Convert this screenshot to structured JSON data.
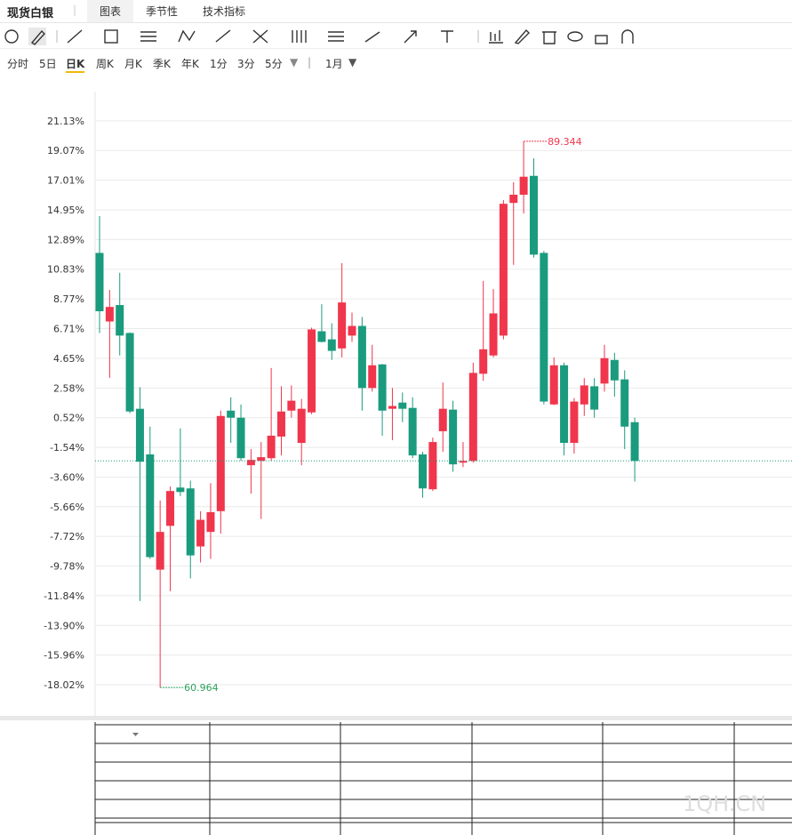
{
  "header": {
    "title": "现货白银",
    "tabs": [
      "图表",
      "季节性",
      "技术指标"
    ]
  },
  "periods": [
    "分时",
    "5日",
    "日K",
    "周K",
    "月K",
    "季K",
    "年K",
    "1分",
    "3分",
    "5分",
    "1月"
  ],
  "watermark": "1QH.CN",
  "chart_data": {
    "type": "candlestick",
    "up_color": "#f0364c",
    "down_color": "#1a9b7e",
    "ylim": [
      -20.18,
      23.16
    ],
    "yticks": [
      {
        "value": 21.13,
        "label": "21.13%"
      },
      {
        "value": 19.07,
        "label": "19.07%"
      },
      {
        "value": 17.01,
        "label": "17.01%"
      },
      {
        "value": 14.95,
        "label": "14.95%"
      },
      {
        "value": 12.89,
        "label": "12.89%"
      },
      {
        "value": 10.83,
        "label": "10.83%"
      },
      {
        "value": 8.77,
        "label": "8.77%"
      },
      {
        "value": 6.71,
        "label": "6.71%"
      },
      {
        "value": 4.65,
        "label": "4.65%"
      },
      {
        "value": 2.58,
        "label": "2.58%"
      },
      {
        "value": 0.52,
        "label": "0.52%"
      },
      {
        "value": -1.54,
        "label": "-1.54%"
      },
      {
        "value": -3.6,
        "label": "-3.60%"
      },
      {
        "value": -5.66,
        "label": "-5.66%"
      },
      {
        "value": -7.72,
        "label": "-7.72%"
      },
      {
        "value": -9.78,
        "label": "-9.78%"
      },
      {
        "value": -11.84,
        "label": "-11.84%"
      },
      {
        "value": -13.9,
        "label": "-13.90%"
      },
      {
        "value": -15.96,
        "label": "-15.96%"
      },
      {
        "value": -18.02,
        "label": "-18.02%"
      }
    ],
    "grid": true,
    "open": [
      11.96,
      7.2,
      8.34,
      6.4,
      1.14,
      -2.03,
      -10.03,
      -6.99,
      -4.33,
      -4.39,
      -8.42,
      -7.41,
      -5.97,
      1.01,
      0.52,
      -2.78,
      -2.48,
      -2.29,
      -0.79,
      1.01,
      -1.23,
      0.89,
      6.52,
      5.96,
      5.33,
      6.22,
      6.89,
      2.58,
      4.22,
      1.14,
      1.57,
      1.2,
      -2.03,
      -4.45,
      -0.42,
      1.08,
      -2.6,
      -2.48,
      3.57,
      4.84,
      6.22,
      15.43,
      16.0,
      17.31,
      11.96,
      1.44,
      4.16,
      -1.23,
      1.44,
      2.7,
      2.89,
      4.53,
      3.18,
      0.21
    ],
    "high": [
      14.52,
      9.39,
      10.58,
      6.45,
      2.64,
      -0.1,
      -5.23,
      -4.26,
      -0.22,
      -3.85,
      -5.97,
      -4.03,
      1.01,
      1.94,
      1.44,
      -1.66,
      -1.17,
      3.97,
      2.7,
      2.76,
      1.82,
      6.77,
      8.4,
      7.08,
      11.25,
      7.82,
      7.51,
      5.58,
      4.25,
      2.58,
      2.27,
      1.94,
      -1.85,
      -0.86,
      2.96,
      1.7,
      -1.17,
      4.34,
      10.02,
      9.45,
      15.62,
      16.87,
      19.71,
      18.53,
      12.09,
      4.71,
      4.34,
      1.88,
      3.27,
      3.27,
      5.58,
      5.02,
      3.81,
      0.52
    ],
    "low": [
      6.4,
      3.29,
      4.84,
      0.83,
      -12.21,
      -9.28,
      -18.21,
      -11.53,
      -4.92,
      -10.64,
      -9.53,
      -9.28,
      -7.53,
      -1.23,
      -2.48,
      -4.75,
      -6.51,
      -2.48,
      -2.1,
      0.52,
      -2.78,
      0.76,
      5.75,
      4.53,
      4.71,
      5.78,
      1.01,
      2.33,
      -0.73,
      -1.04,
      0.21,
      -2.29,
      -5.04,
      -4.57,
      -1.85,
      -3.23,
      -2.91,
      -2.6,
      3.08,
      4.71,
      5.96,
      11.13,
      14.7,
      11.63,
      1.44,
      1.4,
      -2.1,
      -1.97,
      0.64,
      0.52,
      2.33,
      1.98,
      -1.66,
      -3.91
    ],
    "close": [
      7.91,
      8.21,
      6.22,
      0.95,
      -2.54,
      -9.16,
      -7.41,
      -4.57,
      -4.64,
      -9.04,
      -6.57,
      -6.04,
      0.64,
      0.52,
      -2.29,
      -2.41,
      -2.22,
      -0.73,
      0.95,
      1.7,
      1.14,
      6.65,
      5.78,
      5.16,
      8.52,
      6.89,
      2.58,
      4.16,
      1.01,
      1.33,
      1.14,
      -2.1,
      -4.39,
      -1.17,
      1.14,
      -2.72,
      -2.48,
      3.63,
      5.27,
      7.76,
      15.37,
      16.0,
      17.25,
      11.84,
      1.64,
      4.16,
      -1.23,
      1.64,
      2.76,
      1.08,
      4.65,
      3.11,
      -0.1,
      -2.48
    ],
    "annotations": {
      "max_label": "89.344",
      "min_label": "60.964"
    }
  }
}
